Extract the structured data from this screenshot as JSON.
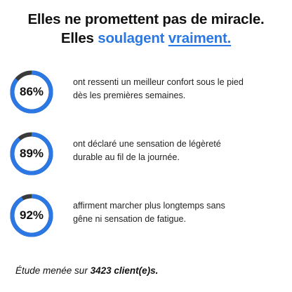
{
  "headline": {
    "line1": "Elles ne promettent pas de miracle.",
    "line2_prefix": "Elles ",
    "line2_accent": "soulagent",
    "line2_space": " ",
    "line2_underlined": "vraiment."
  },
  "colors": {
    "accent": "#2b78e4",
    "ring_track": "#3a3a3a",
    "text": "#111111"
  },
  "stats": [
    {
      "percent": 86,
      "label": "86%",
      "line1": "ont ressenti un meilleur confort sous le pied",
      "line2": "dès les premières semaines."
    },
    {
      "percent": 89,
      "label": "89%",
      "line1": "ont déclaré une sensation de légèreté",
      "line2": "durable au fil de la journée."
    },
    {
      "percent": 92,
      "label": "92%",
      "line1": "affirment marcher plus longtemps sans",
      "line2": "gêne ni sensation de fatigue."
    }
  ],
  "footnote": {
    "prefix": "Étude menée sur ",
    "count": "3423 client(e)s."
  }
}
